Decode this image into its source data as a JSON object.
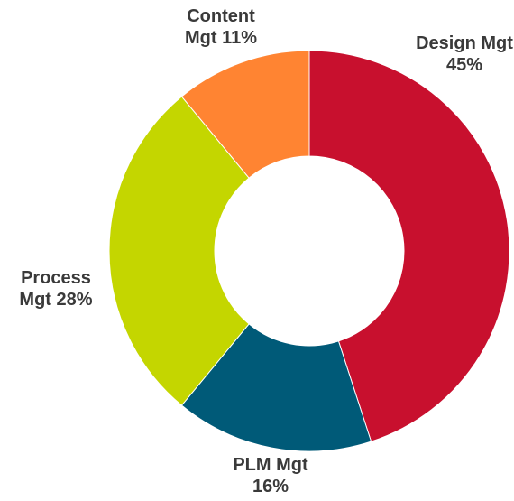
{
  "chart_data": {
    "type": "donut",
    "categories": [
      "Design Mgt",
      "PLM Mgt",
      "Process Mgt",
      "Content Mgt"
    ],
    "values": [
      45,
      16,
      28,
      11
    ],
    "value_labels": [
      "45%",
      "16%",
      "28%",
      "11%"
    ],
    "colors": [
      "#c8102e",
      "#005a78",
      "#c4d600",
      "#ff8432"
    ]
  }
}
